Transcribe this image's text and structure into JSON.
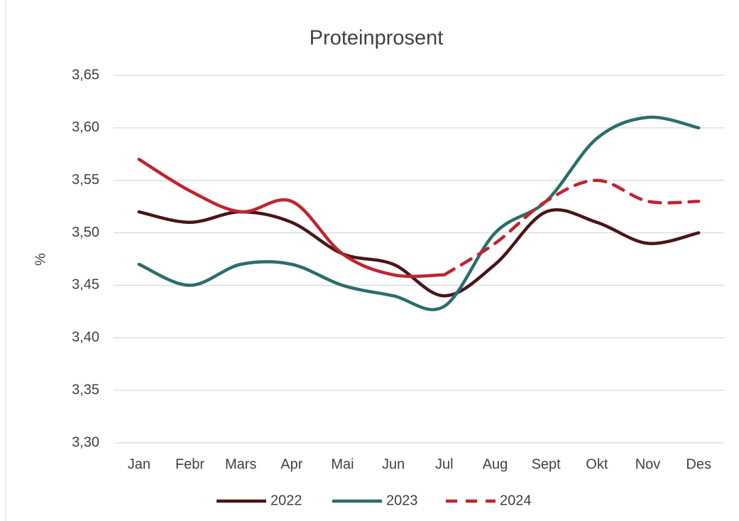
{
  "chart_data": {
    "type": "line",
    "title": "Proteinprosent",
    "y_label": "%",
    "categories": [
      "Jan",
      "Febr",
      "Mars",
      "Apr",
      "Mai",
      "Jun",
      "Jul",
      "Aug",
      "Sept",
      "Okt",
      "Nov",
      "Des"
    ],
    "series": [
      {
        "name": "2022",
        "color": "#4a1518",
        "values": [
          3.52,
          3.51,
          3.52,
          3.51,
          3.48,
          3.47,
          3.44,
          3.47,
          3.52,
          3.51,
          3.49,
          3.5
        ]
      },
      {
        "name": "2023",
        "color": "#2a6e6a",
        "values": [
          3.47,
          3.45,
          3.47,
          3.47,
          3.45,
          3.44,
          3.43,
          3.5,
          3.53,
          3.59,
          3.61,
          3.6
        ]
      },
      {
        "name": "2024",
        "color": "#c0242f",
        "dashed_after": "Jul",
        "values": [
          3.57,
          3.54,
          3.52,
          3.53,
          3.48,
          3.46,
          3.46,
          3.49,
          3.53,
          3.55,
          3.53,
          3.53
        ]
      }
    ],
    "ylim": [
      3.3,
      3.65
    ],
    "yticks": [
      {
        "value": 3.3,
        "label": "3,30"
      },
      {
        "value": 3.35,
        "label": "3,35"
      },
      {
        "value": 3.4,
        "label": "3,40"
      },
      {
        "value": 3.45,
        "label": "3,45"
      },
      {
        "value": 3.5,
        "label": "3,50"
      },
      {
        "value": 3.55,
        "label": "3,55"
      },
      {
        "value": 3.6,
        "label": "3,60"
      },
      {
        "value": 3.65,
        "label": "3,65"
      }
    ],
    "grid": true,
    "smooth": true,
    "legend": "bottom"
  }
}
